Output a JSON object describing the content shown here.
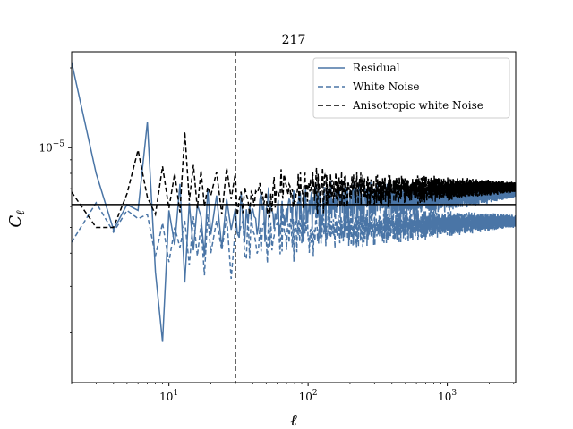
{
  "chart_data": {
    "type": "line",
    "title": "217",
    "xlabel": "ℓ",
    "ylabel": "C",
    "ylabel_subscript": "ℓ",
    "xscale": "log",
    "yscale": "log",
    "xlim": [
      2,
      3100
    ],
    "ylim": [
      1.3e-06,
      2.3e-05
    ],
    "xticks": [
      {
        "value": 10,
        "base": "10",
        "exp": "1"
      },
      {
        "value": 100,
        "base": "10",
        "exp": "2"
      },
      {
        "value": 1000,
        "base": "10",
        "exp": "3"
      }
    ],
    "yticks": [
      {
        "value": 1e-05,
        "base": "10",
        "exp": "−5"
      }
    ],
    "legend_position": "top-right",
    "colors": {
      "residual": "#4a75a6",
      "white_noise": "#4a75a6",
      "anisotropic": "#000000"
    },
    "hline": {
      "y": 6.1e-06
    },
    "vline": {
      "x": 30
    },
    "series": [
      {
        "name": "Residual",
        "style": "solid",
        "color": "#4a75a6",
        "x": [
          2,
          3,
          4,
          5,
          6,
          7,
          8,
          9,
          10,
          11,
          12,
          13,
          14,
          15,
          16,
          17,
          18,
          19,
          20,
          22,
          24,
          26,
          28,
          30
        ],
        "y": [
          2.1e-05,
          8e-06,
          4.9e-06,
          6.1e-06,
          5.8e-06,
          1.25e-05,
          3.4e-06,
          1.85e-06,
          5.8e-06,
          4.3e-06,
          7.3e-06,
          3.1e-06,
          6.2e-06,
          4.1e-06,
          6.1e-06,
          5.5e-06,
          3.9e-06,
          7e-06,
          4.7e-06,
          6.6e-06,
          4.2e-06,
          6.4e-06,
          4.9e-06,
          5.9e-06
        ],
        "noisy_tail": {
          "x_start": 30,
          "x_end": 3100,
          "y_start": 5.7e-06,
          "y_end": 6.8e-06,
          "spread_start": 0.35,
          "spread_end": 0.05
        }
      },
      {
        "name": "White Noise",
        "style": "dashed",
        "color": "#4a75a6",
        "x": [
          2,
          3,
          4,
          5,
          6,
          7,
          8,
          9,
          10,
          11,
          12,
          13,
          14,
          15,
          16,
          17,
          18,
          19,
          20,
          22,
          24,
          26,
          28,
          30
        ],
        "y": [
          4.4e-06,
          6.2e-06,
          4.8e-06,
          5.8e-06,
          5.4e-06,
          5.6e-06,
          3.9e-06,
          5.2e-06,
          3.7e-06,
          5e-06,
          4.2e-06,
          5.3e-06,
          3.6e-06,
          5.5e-06,
          3.9e-06,
          5.1e-06,
          3.3e-06,
          5.6e-06,
          4e-06,
          5.3e-06,
          4.1e-06,
          5.5e-06,
          3.2e-06,
          5e-06
        ],
        "noisy_tail": {
          "x_start": 30,
          "x_end": 3100,
          "y_start": 4.8e-06,
          "y_end": 5.3e-06,
          "spread_start": 0.3,
          "spread_end": 0.06
        }
      },
      {
        "name": "Anisotropic white Noise",
        "style": "dashed",
        "color": "#000000",
        "x": [
          2,
          3,
          4,
          5,
          6,
          7,
          8,
          9,
          10,
          11,
          12,
          13,
          14,
          15,
          16,
          17,
          18,
          19,
          20,
          22,
          24,
          26,
          28,
          30
        ],
        "y": [
          6.8e-06,
          5e-06,
          5e-06,
          6.7e-06,
          9.8e-06,
          6.5e-06,
          5.6e-06,
          8.5e-06,
          5.9e-06,
          8e-06,
          5.7e-06,
          1.15e-05,
          6.3e-06,
          8.6e-06,
          5.9e-06,
          8.2e-06,
          6e-06,
          7.1e-06,
          6.6e-06,
          8.1e-06,
          5.6e-06,
          8.4e-06,
          6.4e-06,
          8e-06
        ],
        "noisy_tail": {
          "x_start": 30,
          "x_end": 3100,
          "y_start": 6.9e-06,
          "y_end": 7.1e-06,
          "spread_start": 0.3,
          "spread_end": 0.05
        }
      }
    ]
  }
}
